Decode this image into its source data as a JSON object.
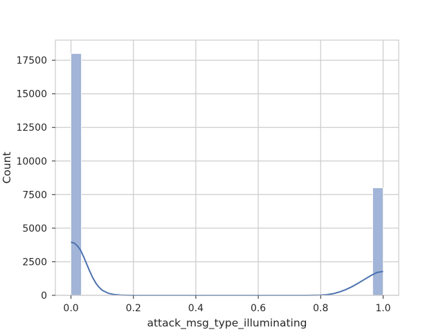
{
  "chart_data": {
    "type": "bar",
    "subtype": "histogram_with_kde",
    "title": "",
    "xlabel": "attack_msg_type_illuminating",
    "ylabel": "Count",
    "xlim": [
      -0.05,
      1.05
    ],
    "ylim": [
      0,
      19000
    ],
    "xticks": [
      0.0,
      0.2,
      0.4,
      0.6,
      0.8,
      1.0
    ],
    "xtick_labels": [
      "0.0",
      "0.2",
      "0.4",
      "0.6",
      "0.8",
      "1.0"
    ],
    "yticks": [
      0,
      2500,
      5000,
      7500,
      10000,
      12500,
      15000,
      17500
    ],
    "ytick_labels": [
      "0",
      "2500",
      "5000",
      "7500",
      "10000",
      "12500",
      "15000",
      "17500"
    ],
    "grid": true,
    "bins": [
      {
        "x_start": 0.0,
        "x_end": 0.0333,
        "count": 18000
      },
      {
        "x_start": 0.9667,
        "x_end": 1.0,
        "count": 8000
      }
    ],
    "kde": {
      "x": [
        0.0,
        0.01,
        0.02,
        0.03,
        0.04,
        0.05,
        0.06,
        0.07,
        0.08,
        0.09,
        0.1,
        0.12,
        0.14,
        0.16,
        0.18,
        0.2,
        0.25,
        0.3,
        0.4,
        0.5,
        0.6,
        0.7,
        0.75,
        0.8,
        0.82,
        0.84,
        0.86,
        0.88,
        0.9,
        0.92,
        0.94,
        0.96,
        0.98,
        1.0
      ],
      "y": [
        3950,
        3900,
        3700,
        3400,
        2900,
        2350,
        1800,
        1300,
        900,
        600,
        380,
        150,
        55,
        18,
        6,
        2,
        0,
        0,
        0,
        0,
        0,
        0,
        2,
        20,
        50,
        120,
        250,
        420,
        640,
        900,
        1180,
        1460,
        1700,
        1780
      ]
    },
    "colors": {
      "bar_fill": "#a2b4d7",
      "kde_line": "#4c72b0",
      "grid": "#cccccc",
      "axes_edge": "#cccccc"
    }
  }
}
